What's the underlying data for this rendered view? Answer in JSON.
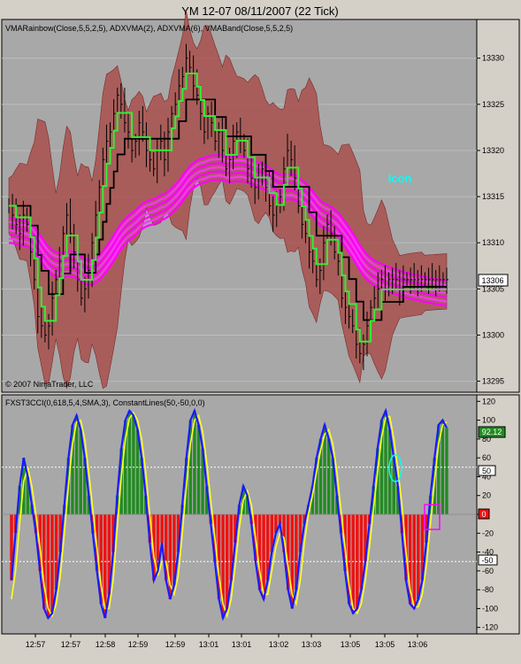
{
  "window": {
    "title": "YM 12-07  08/11/2007  (22 Tick)"
  },
  "price_panel": {
    "indicator_label": "VMARainbow(Close,5,5,2,5), ADXVMA(2), ADXVMA(6), VMABand(Close,5,5,2,5)",
    "copyright": "© 2007 NinjaTrader, LLC",
    "annotation": "Icon",
    "last_price_badge": "13306"
  },
  "cci_panel": {
    "indicator_label": "FXST3CCI(0,618,5,4,SMA,3), ConstantLines(50,-50,0,0)",
    "last_value_badge": "92.12",
    "upper_line_badge": "50",
    "zero_line_badge": "0",
    "lower_line_badge": "-50"
  },
  "colors": {
    "background": "#d4d0c8",
    "panel_bg": "#a8a8a8",
    "band_fill": "#a8504c",
    "rainbow": "#ff00ff",
    "fast_adxvma": "#33ee33",
    "slow_adxvma": "#000000",
    "cci_line": "#1a1aff",
    "signal_line": "#ffff20",
    "hist_up": "#228b22",
    "hist_down": "#ee1111",
    "annotation": "#00ffff"
  },
  "chart_data": [
    {
      "type": "line",
      "title": "YM 12-07  08/11/2007  (22 Tick)",
      "ylim": [
        13294,
        13334
      ],
      "y_ticks": [
        13295,
        13300,
        13305,
        13310,
        13315,
        13320,
        13325,
        13330
      ],
      "x_tick_labels": [
        "12:57",
        "12:57",
        "12:58",
        "12:59",
        "12:59",
        "13:01",
        "13:01",
        "13:02",
        "13:03",
        "13:05",
        "13:05",
        "13:06"
      ],
      "n_bars": 122,
      "series": [
        {
          "name": "Close",
          "values": [
            13314,
            13313,
            13312,
            13311,
            13313,
            13312,
            13309,
            13306,
            13302,
            13301,
            13300,
            13301,
            13304,
            13306,
            13308,
            13311,
            13313,
            13311,
            13309,
            13306,
            13304,
            13305,
            13307,
            13310,
            13313,
            13316,
            13319,
            13321,
            13322,
            13324,
            13326,
            13325,
            13323,
            13322,
            13320,
            13321,
            13323,
            13322,
            13320,
            13319,
            13318,
            13320,
            13321,
            13319,
            13322,
            13324,
            13325,
            13327,
            13328,
            13330,
            13329,
            13327,
            13326,
            13324,
            13322,
            13324,
            13323,
            13321,
            13322,
            13320,
            13318,
            13319,
            13321,
            13322,
            13321,
            13320,
            13318,
            13317,
            13316,
            13317,
            13318,
            13316,
            13314,
            13313,
            13314,
            13315,
            13318,
            13320,
            13319,
            13317,
            13314,
            13312,
            13311,
            13309,
            13308,
            13306,
            13307,
            13310,
            13312,
            13311,
            13309,
            13308,
            13304,
            13303,
            13302,
            13301,
            13299,
            13298,
            13299,
            13301,
            13303,
            13304,
            13305,
            13306,
            13305,
            13306,
            13306,
            13306,
            13305,
            13306,
            13306,
            13306,
            13306,
            13306,
            13306,
            13306,
            13306,
            13306,
            13306,
            13306,
            13306,
            13306
          ]
        }
      ]
    },
    {
      "type": "bar",
      "title": "FXST3CCI(0,618,5,4,SMA,3), ConstantLines(50,-50,0,0)",
      "ylim": [
        -125,
        125
      ],
      "y_ticks": [
        -120,
        -100,
        -80,
        -60,
        -40,
        -20,
        0,
        20,
        40,
        60,
        80,
        100,
        120
      ],
      "constant_lines": [
        50,
        -50,
        0
      ],
      "series": [
        {
          "name": "FXST3CCI",
          "values": [
            -70,
            -20,
            30,
            60,
            40,
            10,
            -20,
            -60,
            -100,
            -110,
            -105,
            -80,
            -40,
            10,
            60,
            95,
            105,
            90,
            60,
            20,
            -20,
            -60,
            -95,
            -110,
            -85,
            -40,
            20,
            70,
            100,
            110,
            105,
            90,
            60,
            20,
            -30,
            -70,
            -60,
            -30,
            -70,
            -90,
            -75,
            -40,
            10,
            60,
            100,
            110,
            95,
            70,
            30,
            -10,
            -50,
            -90,
            -110,
            -100,
            -70,
            -30,
            10,
            30,
            20,
            -10,
            -50,
            -80,
            -90,
            -70,
            -40,
            -20,
            -10,
            -40,
            -80,
            -100,
            -80,
            -40,
            -10,
            10,
            30,
            60,
            80,
            95,
            80,
            60,
            20,
            -20,
            -60,
            -95,
            -105,
            -100,
            -80,
            -50,
            -10,
            30,
            70,
            100,
            110,
            90,
            60,
            30,
            -20,
            -70,
            -95,
            -100,
            -90,
            -70,
            -30,
            20,
            60,
            95,
            100,
            92
          ]
        },
        {
          "name": "Signal",
          "values": [
            -90,
            -60,
            -10,
            35,
            50,
            30,
            0,
            -35,
            -75,
            -100,
            -108,
            -95,
            -65,
            -20,
            30,
            75,
            98,
            100,
            80,
            45,
            5,
            -35,
            -75,
            -100,
            -100,
            -70,
            -15,
            40,
            80,
            102,
            108,
            100,
            80,
            45,
            0,
            -45,
            -65,
            -50,
            -50,
            -75,
            -85,
            -65,
            -20,
            30,
            75,
            100,
            105,
            88,
            55,
            15,
            -25,
            -65,
            -95,
            -108,
            -90,
            -55,
            -15,
            15,
            25,
            10,
            -25,
            -60,
            -85,
            -85,
            -60,
            -35,
            -20,
            -25,
            -55,
            -85,
            -95,
            -70,
            -30,
            0,
            20,
            45,
            68,
            85,
            90,
            75,
            45,
            5,
            -35,
            -75,
            -100,
            -105,
            -95,
            -70,
            -35,
            5,
            45,
            82,
            103,
            104,
            80,
            48,
            10,
            -40,
            -80,
            -98,
            -98,
            -85,
            -55,
            -10,
            35,
            75,
            95,
            98
          ]
        }
      ]
    }
  ]
}
